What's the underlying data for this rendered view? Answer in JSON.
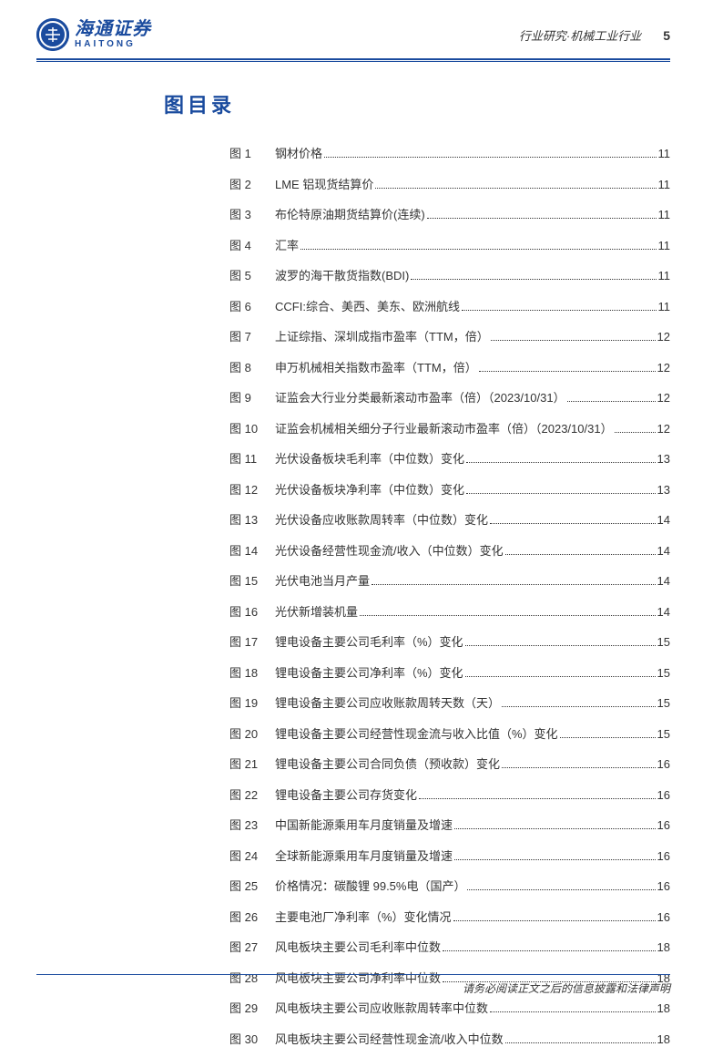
{
  "header": {
    "logo_cn": "海通证券",
    "logo_en": "HAITONG",
    "category": "行业研究·机械工业行业",
    "page_number": "5"
  },
  "section_title": "图目录",
  "toc": [
    {
      "label": "图 1",
      "title": "钢材价格",
      "page": "11"
    },
    {
      "label": "图 2",
      "title": "LME 铝现货结算价",
      "page": "11"
    },
    {
      "label": "图 3",
      "title": "布伦特原油期货结算价(连续)",
      "page": "11"
    },
    {
      "label": "图 4",
      "title": "汇率",
      "page": "11"
    },
    {
      "label": "图 5",
      "title": "波罗的海干散货指数(BDI)",
      "page": "11"
    },
    {
      "label": "图 6",
      "title": "CCFI:综合、美西、美东、欧洲航线",
      "page": "11"
    },
    {
      "label": "图 7",
      "title": "上证综指、深圳成指市盈率（TTM，倍）",
      "page": "12"
    },
    {
      "label": "图 8",
      "title": "申万机械相关指数市盈率（TTM，倍）",
      "page": "12"
    },
    {
      "label": "图 9",
      "title": "证监会大行业分类最新滚动市盈率（倍）（2023/10/31）",
      "page": "12"
    },
    {
      "label": "图 10",
      "title": "证监会机械相关细分子行业最新滚动市盈率（倍）（2023/10/31）",
      "page": "12"
    },
    {
      "label": "图 11",
      "title": "光伏设备板块毛利率（中位数）变化",
      "page": "13"
    },
    {
      "label": "图 12",
      "title": "光伏设备板块净利率（中位数）变化",
      "page": "13"
    },
    {
      "label": "图 13",
      "title": "光伏设备应收账款周转率（中位数）变化",
      "page": "14"
    },
    {
      "label": "图 14",
      "title": "光伏设备经营性现金流/收入（中位数）变化",
      "page": "14"
    },
    {
      "label": "图 15",
      "title": "光伏电池当月产量",
      "page": "14"
    },
    {
      "label": "图 16",
      "title": "光伏新增装机量",
      "page": "14"
    },
    {
      "label": "图 17",
      "title": "锂电设备主要公司毛利率（%）变化",
      "page": "15"
    },
    {
      "label": "图 18",
      "title": "锂电设备主要公司净利率（%）变化",
      "page": "15"
    },
    {
      "label": "图 19",
      "title": "锂电设备主要公司应收账款周转天数（天）",
      "page": "15"
    },
    {
      "label": "图 20",
      "title": "锂电设备主要公司经营性现金流与收入比值（%）变化",
      "page": "15"
    },
    {
      "label": "图 21",
      "title": "锂电设备主要公司合同负债（预收款）变化",
      "page": "16"
    },
    {
      "label": "图 22",
      "title": "锂电设备主要公司存货变化",
      "page": "16"
    },
    {
      "label": "图 23",
      "title": "中国新能源乘用车月度销量及增速",
      "page": "16"
    },
    {
      "label": "图 24",
      "title": "全球新能源乘用车月度销量及增速",
      "page": "16"
    },
    {
      "label": "图 25",
      "title": "价格情况：碳酸锂 99.5%电（国产）",
      "page": "16"
    },
    {
      "label": "图 26",
      "title": "主要电池厂净利率（%）变化情况",
      "page": "16"
    },
    {
      "label": "图 27",
      "title": "风电板块主要公司毛利率中位数",
      "page": "18"
    },
    {
      "label": "图 28",
      "title": "风电板块主要公司净利率中位数",
      "page": "18"
    },
    {
      "label": "图 29",
      "title": "风电板块主要公司应收账款周转率中位数",
      "page": "18"
    },
    {
      "label": "图 30",
      "title": "风电板块主要公司经营性现金流/收入中位数",
      "page": "18"
    }
  ],
  "footer": {
    "disclaimer": "请务必阅读正文之后的信息披露和法律声明"
  },
  "colors": {
    "brand": "#1a4b9e",
    "text": "#333333",
    "background": "#ffffff"
  }
}
